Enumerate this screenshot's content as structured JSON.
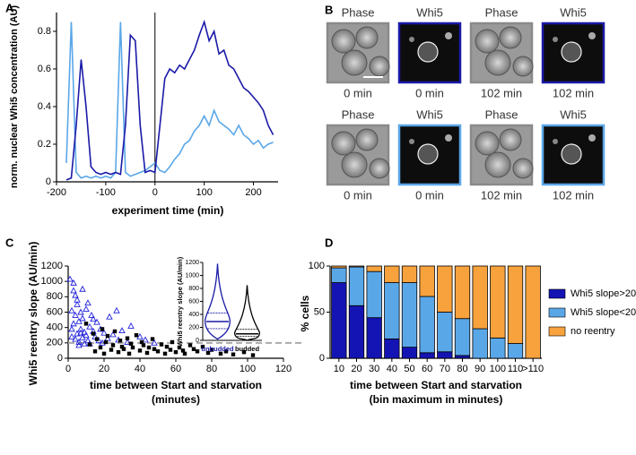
{
  "panels": [
    "A",
    "B",
    "C",
    "D"
  ],
  "image_grid": {
    "rows": [
      [
        {
          "title": "Phase",
          "caption": "0 min",
          "frame_color": "#8a8a8a"
        },
        {
          "title": "Whi5",
          "caption": "0 min",
          "frame_color": "#1a1aa8"
        },
        {
          "title": "Phase",
          "caption": "102 min",
          "frame_color": "#8a8a8a"
        },
        {
          "title": "Whi5",
          "caption": "102 min",
          "frame_color": "#1a1aa8"
        }
      ],
      [
        {
          "title": "Phase",
          "caption": "0 min",
          "frame_color": "#8a8a8a"
        },
        {
          "title": "Whi5",
          "caption": "0 min",
          "frame_color": "#5aa7e8"
        },
        {
          "title": "Phase",
          "caption": "102 min",
          "frame_color": "#8a8a8a"
        },
        {
          "title": "Whi5",
          "caption": "102 min",
          "frame_color": "#5aa7e8"
        }
      ]
    ]
  },
  "chart_data": [
    {
      "type": "line",
      "ylabel": "norm. nuclear Whi5 concentration (AU)",
      "xlabel": "experiment time (min)",
      "x": [
        -180,
        -170,
        -160,
        -150,
        -140,
        -130,
        -120,
        -110,
        -100,
        -90,
        -80,
        -70,
        -60,
        -50,
        -40,
        -30,
        -20,
        -10,
        0,
        10,
        20,
        30,
        40,
        50,
        60,
        70,
        80,
        90,
        100,
        110,
        120,
        130,
        140,
        150,
        160,
        170,
        180,
        190,
        200,
        210,
        220,
        230,
        240
      ],
      "series": [
        {
          "color": "#5aa7e8",
          "values": [
            0.1,
            0.85,
            0.05,
            0.02,
            0.03,
            0.02,
            0.03,
            0.02,
            0.03,
            0.02,
            0.05,
            0.85,
            0.05,
            0.03,
            0.04,
            0.05,
            0.06,
            0.08,
            0.1,
            0.06,
            0.05,
            0.08,
            0.12,
            0.15,
            0.2,
            0.22,
            0.27,
            0.3,
            0.35,
            0.3,
            0.38,
            0.32,
            0.3,
            0.28,
            0.25,
            0.3,
            0.25,
            0.23,
            0.2,
            0.22,
            0.18,
            0.2,
            0.21
          ]
        },
        {
          "color": "#1a1aa8",
          "values": [
            0.01,
            0.02,
            0.3,
            0.65,
            0.4,
            0.08,
            0.05,
            0.04,
            0.05,
            0.04,
            0.05,
            0.04,
            0.3,
            0.78,
            0.75,
            0.3,
            0.05,
            0.06,
            0.05,
            0.3,
            0.55,
            0.6,
            0.58,
            0.62,
            0.6,
            0.65,
            0.7,
            0.78,
            0.85,
            0.75,
            0.8,
            0.68,
            0.7,
            0.62,
            0.6,
            0.55,
            0.5,
            0.48,
            0.45,
            0.42,
            0.38,
            0.3,
            0.25
          ]
        }
      ],
      "xlim": [
        -200,
        250
      ],
      "ylim": [
        0,
        0.9
      ],
      "xticks": [
        -200,
        -100,
        0,
        100,
        200
      ],
      "yticks": [
        0,
        0.2,
        0.4,
        0.6,
        0.8
      ],
      "vline": 0
    },
    {
      "type": "scatter",
      "ylabel": "Whi5 reentry slope (AU/min)",
      "xlabel": [
        "time between Start and starvation",
        "(minutes)"
      ],
      "series": [
        {
          "color": "#2222dd",
          "marker": "triangle",
          "x": [
            1,
            2,
            2,
            3,
            3,
            4,
            4,
            5,
            5,
            6,
            6,
            7,
            7,
            8,
            8,
            9,
            10,
            10,
            11,
            12,
            12,
            13,
            14,
            15,
            16,
            17,
            18,
            19,
            20,
            22,
            23,
            25,
            27,
            28,
            30,
            33,
            35,
            40,
            43,
            48,
            3,
            5,
            8,
            11,
            14,
            2,
            6,
            9,
            4,
            7
          ],
          "values": [
            1030,
            620,
            380,
            880,
            450,
            250,
            560,
            320,
            700,
            210,
            480,
            380,
            600,
            270,
            520,
            340,
            300,
            640,
            230,
            410,
            190,
            560,
            350,
            280,
            470,
            230,
            380,
            200,
            330,
            260,
            540,
            310,
            620,
            240,
            360,
            210,
            420,
            280,
            240,
            200,
            980,
            760,
            900,
            720,
            510,
            280,
            170,
            190,
            820,
            330
          ]
        },
        {
          "color": "#000000",
          "marker": "square",
          "x": [
            10,
            12,
            14,
            15,
            16,
            18,
            19,
            20,
            21,
            22,
            24,
            25,
            26,
            28,
            29,
            30,
            31,
            33,
            34,
            35,
            36,
            38,
            40,
            41,
            42,
            44,
            45,
            47,
            48,
            50,
            52,
            54,
            55,
            57,
            58,
            60,
            62,
            64,
            65,
            68,
            70,
            72,
            75,
            78,
            80,
            85,
            88,
            92,
            98,
            103
          ],
          "values": [
            450,
            180,
            320,
            90,
            250,
            140,
            380,
            60,
            210,
            290,
            110,
            170,
            350,
            80,
            230,
            150,
            120,
            260,
            60,
            190,
            140,
            300,
            100,
            210,
            170,
            70,
            140,
            250,
            120,
            90,
            180,
            60,
            150,
            110,
            210,
            80,
            140,
            100,
            60,
            170,
            120,
            90,
            150,
            70,
            110,
            60,
            90,
            50,
            80,
            40
          ]
        }
      ],
      "xlim": [
        0,
        120
      ],
      "ylim": [
        0,
        1200
      ],
      "xticks": [
        0,
        20,
        40,
        60,
        80,
        100,
        120
      ],
      "yticks": [
        0,
        200,
        400,
        600,
        800,
        1000,
        1200
      ],
      "hline": 200,
      "hline_color": "#aaaaaa"
    },
    {
      "type": "violin",
      "ylabel": "Whi5 reentry slope (AU/min)",
      "categories": [
        "unbudded",
        "budded"
      ],
      "colors": [
        "#1a1aa8",
        "#000000"
      ],
      "values": [
        290,
        100
      ],
      "quartiles": [
        [
          180,
          420
        ],
        [
          60,
          170
        ]
      ],
      "range": [
        [
          20,
          1180
        ],
        [
          0,
          850
        ]
      ],
      "ylim": [
        0,
        1200
      ],
      "yticks": [
        0,
        200,
        400,
        600,
        800,
        1000,
        1200
      ]
    },
    {
      "type": "stacked-bar",
      "ylabel": "% cells",
      "xlabel": [
        "time between Start and starvation",
        "(bin maximum in minutes)"
      ],
      "categories": [
        "10",
        "20",
        "30",
        "40",
        "50",
        "60",
        "70",
        "80",
        "90",
        "100",
        "110",
        ">110"
      ],
      "series": [
        {
          "name": "Whi5 slope>200",
          "color": "#1414b4",
          "values": [
            82,
            57,
            44,
            21,
            12,
            6,
            7,
            3,
            0,
            0,
            0,
            0
          ]
        },
        {
          "name": "Whi5 slope<200",
          "color": "#5aa7e8",
          "values": [
            16,
            42,
            50,
            61,
            70,
            61,
            43,
            40,
            32,
            22,
            16,
            0
          ]
        },
        {
          "name": "no reentry",
          "color": "#f7a23c",
          "values": [
            2,
            1,
            6,
            18,
            18,
            33,
            50,
            57,
            68,
            78,
            84,
            100
          ]
        }
      ],
      "ylim": [
        0,
        100
      ],
      "yticks": [
        0,
        50,
        100
      ],
      "legend": "right"
    }
  ]
}
